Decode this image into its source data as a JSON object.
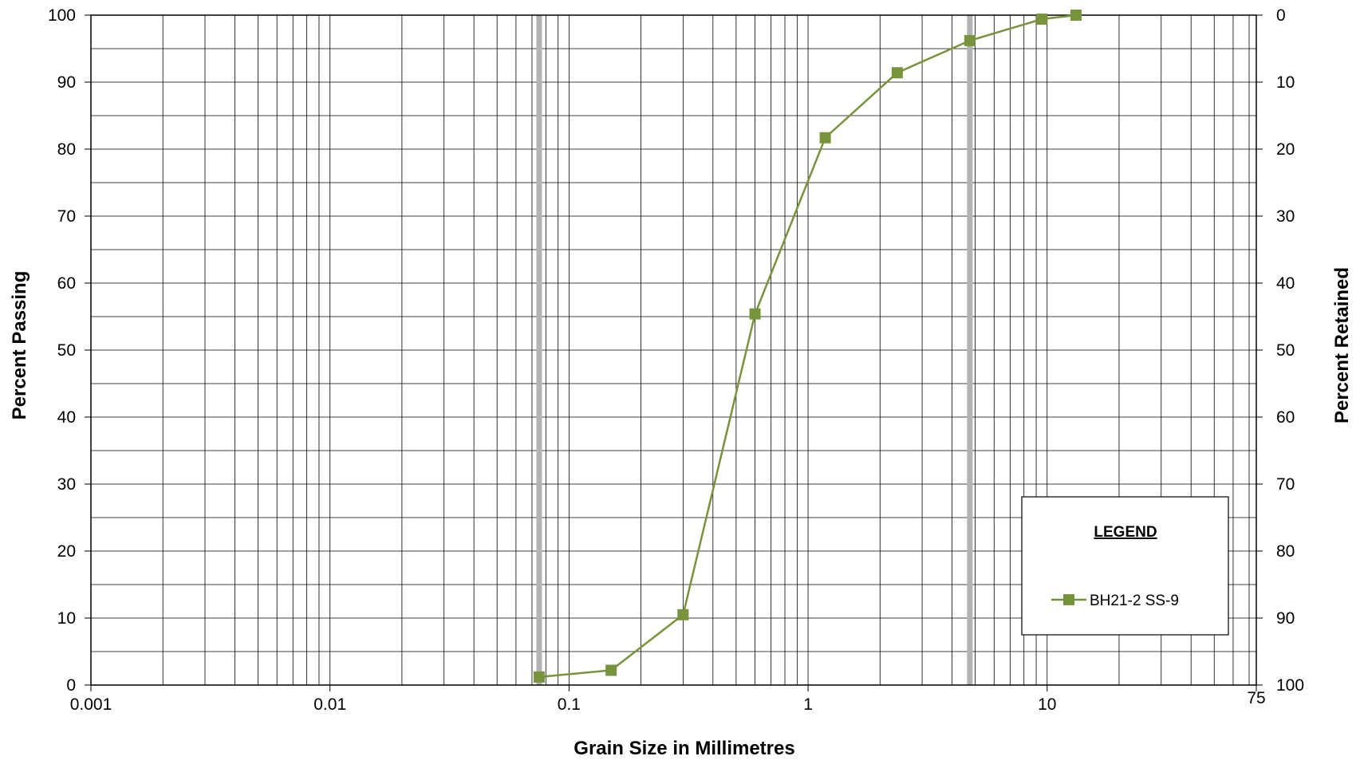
{
  "chart_data": {
    "type": "line",
    "xlabel": "Grain Size in Millimetres",
    "ylabel": "Percent Passing",
    "y2label": "Percent Retained",
    "xscale": "log",
    "xlim": [
      0.001,
      75
    ],
    "ylim": [
      0,
      100
    ],
    "y2lim": [
      100,
      0
    ],
    "x_tick_labels": [
      "0.001",
      "0.01",
      "0.1",
      "1",
      "10",
      "75"
    ],
    "y_tick_labels": [
      "0",
      "10",
      "20",
      "30",
      "40",
      "50",
      "60",
      "70",
      "80",
      "90",
      "100"
    ],
    "y2_tick_labels": [
      "100",
      "90",
      "80",
      "70",
      "60",
      "50",
      "40",
      "30",
      "20",
      "10",
      "0"
    ],
    "grid": true,
    "reference_lines_x": [
      0.075,
      4.75
    ],
    "legend_title": "LEGEND",
    "legend_position": "bottom-right",
    "series": [
      {
        "name": "BH21-2 SS-9",
        "color": "#77933c",
        "marker": "square",
        "x": [
          0.075,
          0.15,
          0.3,
          0.6,
          1.18,
          2.36,
          4.75,
          9.5,
          13.2
        ],
        "y": [
          1.2,
          2.2,
          10.5,
          55.4,
          81.7,
          91.4,
          96.2,
          99.4,
          100
        ]
      }
    ]
  },
  "colors": {
    "grid": "#000000",
    "reference_line": "#b3b3b3",
    "series": "#77933c"
  }
}
